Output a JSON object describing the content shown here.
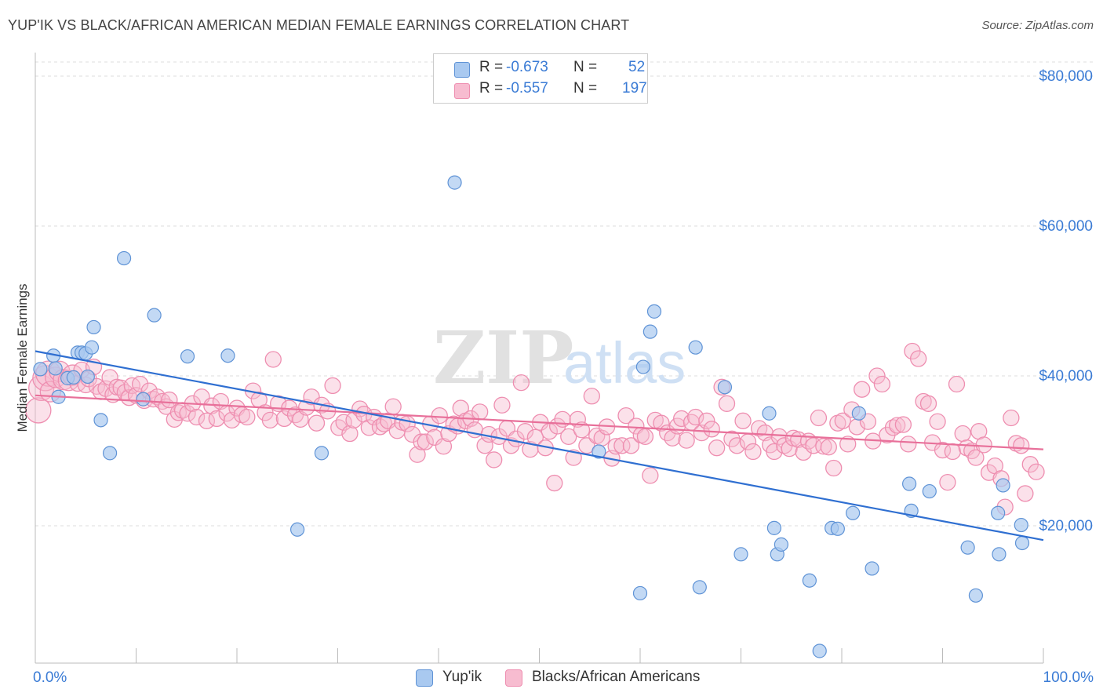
{
  "title": "YUP'IK VS BLACK/AFRICAN AMERICAN MEDIAN FEMALE EARNINGS CORRELATION CHART",
  "source": "Source: ZipAtlas.com",
  "watermark": {
    "zip": "ZIP",
    "atlas": "atlas"
  },
  "legend": {
    "rows": [
      {
        "r_label": "R =",
        "r_value": "-0.673",
        "n_label": "N =",
        "n_value": "52"
      },
      {
        "r_label": "R =",
        "r_value": "-0.557",
        "n_label": "N =",
        "n_value": "197"
      }
    ]
  },
  "bottom_legend": {
    "series1": "Yup'ik",
    "series2": "Blacks/African Americans"
  },
  "chart_data": {
    "type": "scatter",
    "title": "YUP'IK VS BLACK/AFRICAN AMERICAN MEDIAN FEMALE EARNINGS CORRELATION CHART",
    "xlabel": "",
    "ylabel": "Median Female Earnings",
    "xlim": [
      0,
      100
    ],
    "ylim": [
      0,
      80000
    ],
    "x_tick_labels": [
      "0.0%",
      "100.0%"
    ],
    "y_ticks": [
      20000,
      40000,
      60000,
      80000
    ],
    "y_tick_labels": [
      "$20,000",
      "$40,000",
      "$60,000",
      "$80,000"
    ],
    "grid": true,
    "legend_position": "top-center",
    "colors": {
      "yupik_fill": "#a9c9f0",
      "yupik_stroke": "#5f93d6",
      "yupik_line": "#2f6fd1",
      "black_fill": "#f7bcd0",
      "black_stroke": "#ee8eb0",
      "black_line": "#e8709a",
      "axis_text": "#3a7bd5"
    },
    "series": [
      {
        "name": "Yup'ik",
        "trend": {
          "x": [
            0,
            100
          ],
          "y": [
            43300,
            18100
          ]
        },
        "points": [
          [
            0.5,
            40900
          ],
          [
            1.8,
            42700
          ],
          [
            2.3,
            37200
          ],
          [
            3.2,
            39700
          ],
          [
            4.2,
            43100
          ],
          [
            4.6,
            43100
          ],
          [
            5.0,
            43000
          ],
          [
            5.2,
            39900
          ],
          [
            5.6,
            43800
          ],
          [
            5.8,
            46500
          ],
          [
            6.5,
            34100
          ],
          [
            7.4,
            29700
          ],
          [
            8.8,
            55700
          ],
          [
            10.7,
            36900
          ],
          [
            11.8,
            48100
          ],
          [
            15.1,
            42600
          ],
          [
            19.1,
            42700
          ],
          [
            26.0,
            19500
          ],
          [
            28.4,
            29700
          ],
          [
            41.6,
            65800
          ],
          [
            55.9,
            29900
          ],
          [
            60.0,
            11000
          ],
          [
            60.3,
            41200
          ],
          [
            61.0,
            45900
          ],
          [
            61.4,
            48600
          ],
          [
            65.5,
            43800
          ],
          [
            65.9,
            11800
          ],
          [
            68.4,
            38500
          ],
          [
            70.0,
            16200
          ],
          [
            72.8,
            35000
          ],
          [
            73.3,
            19700
          ],
          [
            73.6,
            16200
          ],
          [
            74.0,
            17500
          ],
          [
            76.8,
            12700
          ],
          [
            77.8,
            3300
          ],
          [
            79.0,
            19700
          ],
          [
            79.6,
            19600
          ],
          [
            81.1,
            21700
          ],
          [
            81.7,
            35000
          ],
          [
            83.0,
            14300
          ],
          [
            86.7,
            25600
          ],
          [
            86.9,
            22000
          ],
          [
            88.7,
            24600
          ],
          [
            92.5,
            17100
          ],
          [
            93.3,
            10700
          ],
          [
            95.5,
            21700
          ],
          [
            95.6,
            16200
          ],
          [
            96.0,
            25400
          ],
          [
            97.8,
            20100
          ],
          [
            97.9,
            17700
          ],
          [
            3.8,
            39800
          ],
          [
            2.0,
            41000
          ]
        ]
      },
      {
        "name": "Blacks/African Americans",
        "trend": {
          "x": [
            0,
            100
          ],
          "y": [
            37400,
            30200
          ]
        },
        "points": [
          [
            0.3,
            35400
          ],
          [
            0.6,
            38400
          ],
          [
            1.0,
            39700
          ],
          [
            1.3,
            40300
          ],
          [
            1.5,
            37900
          ],
          [
            2.0,
            39800
          ],
          [
            2.4,
            40600
          ],
          [
            2.8,
            39500
          ],
          [
            3.3,
            39400
          ],
          [
            3.7,
            40100
          ],
          [
            4.2,
            39000
          ],
          [
            4.6,
            40800
          ],
          [
            5.0,
            38800
          ],
          [
            5.3,
            39600
          ],
          [
            5.8,
            41200
          ],
          [
            6.1,
            38600
          ],
          [
            6.5,
            37900
          ],
          [
            7.0,
            38300
          ],
          [
            7.4,
            39800
          ],
          [
            7.7,
            37500
          ],
          [
            8.1,
            38500
          ],
          [
            8.5,
            38400
          ],
          [
            8.9,
            37800
          ],
          [
            9.3,
            37100
          ],
          [
            9.6,
            38700
          ],
          [
            10.0,
            37400
          ],
          [
            10.4,
            38900
          ],
          [
            10.8,
            36700
          ],
          [
            11.3,
            38000
          ],
          [
            11.7,
            36900
          ],
          [
            12.1,
            37200
          ],
          [
            12.6,
            36600
          ],
          [
            13.0,
            35900
          ],
          [
            13.3,
            36800
          ],
          [
            13.8,
            34200
          ],
          [
            14.2,
            35100
          ],
          [
            14.6,
            35400
          ],
          [
            15.1,
            35000
          ],
          [
            15.6,
            36300
          ],
          [
            16.0,
            34500
          ],
          [
            16.5,
            37200
          ],
          [
            17.0,
            34000
          ],
          [
            17.5,
            36000
          ],
          [
            18.0,
            34300
          ],
          [
            18.4,
            36600
          ],
          [
            19.0,
            35000
          ],
          [
            19.5,
            34100
          ],
          [
            20.0,
            35700
          ],
          [
            20.5,
            34800
          ],
          [
            21.0,
            34500
          ],
          [
            21.6,
            38000
          ],
          [
            22.2,
            36800
          ],
          [
            22.8,
            35100
          ],
          [
            23.3,
            34100
          ],
          [
            23.6,
            42200
          ],
          [
            24.1,
            36300
          ],
          [
            24.7,
            34300
          ],
          [
            25.2,
            35700
          ],
          [
            25.8,
            34800
          ],
          [
            26.3,
            34200
          ],
          [
            26.9,
            35800
          ],
          [
            27.4,
            37200
          ],
          [
            27.9,
            33700
          ],
          [
            28.4,
            36100
          ],
          [
            29.0,
            35300
          ],
          [
            29.5,
            38700
          ],
          [
            30.1,
            33100
          ],
          [
            30.6,
            33800
          ],
          [
            31.2,
            32300
          ],
          [
            31.6,
            34100
          ],
          [
            32.2,
            35600
          ],
          [
            32.6,
            34900
          ],
          [
            33.1,
            33100
          ],
          [
            33.6,
            34500
          ],
          [
            34.2,
            33200
          ],
          [
            34.6,
            33600
          ],
          [
            35.0,
            34000
          ],
          [
            35.5,
            35900
          ],
          [
            35.9,
            32700
          ],
          [
            36.4,
            33800
          ],
          [
            36.9,
            33600
          ],
          [
            37.4,
            32200
          ],
          [
            37.9,
            29500
          ],
          [
            38.3,
            31200
          ],
          [
            38.7,
            31200
          ],
          [
            39.2,
            33600
          ],
          [
            39.6,
            31800
          ],
          [
            40.1,
            34700
          ],
          [
            40.5,
            30600
          ],
          [
            41.0,
            32300
          ],
          [
            41.5,
            33600
          ],
          [
            41.9,
            33300
          ],
          [
            42.2,
            35700
          ],
          [
            42.7,
            34000
          ],
          [
            43.2,
            34300
          ],
          [
            43.6,
            32800
          ],
          [
            44.1,
            35200
          ],
          [
            44.6,
            30700
          ],
          [
            45.0,
            32200
          ],
          [
            45.5,
            28800
          ],
          [
            46.0,
            31900
          ],
          [
            46.3,
            36100
          ],
          [
            46.8,
            33000
          ],
          [
            47.2,
            30700
          ],
          [
            47.7,
            31600
          ],
          [
            48.2,
            39100
          ],
          [
            48.6,
            32600
          ],
          [
            49.1,
            30200
          ],
          [
            49.6,
            31800
          ],
          [
            50.1,
            33800
          ],
          [
            50.6,
            30400
          ],
          [
            51.0,
            32600
          ],
          [
            51.5,
            25700
          ],
          [
            51.8,
            33300
          ],
          [
            52.3,
            34200
          ],
          [
            52.9,
            31900
          ],
          [
            53.4,
            29100
          ],
          [
            53.8,
            34200
          ],
          [
            54.2,
            32800
          ],
          [
            54.7,
            30700
          ],
          [
            55.2,
            37300
          ],
          [
            55.7,
            32000
          ],
          [
            56.2,
            31700
          ],
          [
            56.7,
            33200
          ],
          [
            57.2,
            29000
          ],
          [
            57.6,
            30600
          ],
          [
            58.2,
            30700
          ],
          [
            58.6,
            34700
          ],
          [
            59.1,
            30700
          ],
          [
            59.6,
            33300
          ],
          [
            60.1,
            32100
          ],
          [
            60.5,
            31900
          ],
          [
            61.0,
            26700
          ],
          [
            61.5,
            34100
          ],
          [
            62.1,
            33700
          ],
          [
            62.7,
            32400
          ],
          [
            63.2,
            31700
          ],
          [
            63.7,
            33300
          ],
          [
            64.1,
            34300
          ],
          [
            64.6,
            31400
          ],
          [
            65.1,
            33800
          ],
          [
            65.5,
            34500
          ],
          [
            66.1,
            32400
          ],
          [
            66.6,
            34000
          ],
          [
            67.1,
            32900
          ],
          [
            67.6,
            30400
          ],
          [
            68.1,
            38500
          ],
          [
            68.6,
            36300
          ],
          [
            69.1,
            31600
          ],
          [
            69.6,
            30700
          ],
          [
            70.2,
            34000
          ],
          [
            70.7,
            31200
          ],
          [
            71.2,
            29900
          ],
          [
            71.8,
            33000
          ],
          [
            72.4,
            32400
          ],
          [
            72.9,
            30800
          ],
          [
            73.3,
            29900
          ],
          [
            73.8,
            31900
          ],
          [
            74.3,
            30700
          ],
          [
            74.8,
            30300
          ],
          [
            75.2,
            31700
          ],
          [
            75.7,
            31500
          ],
          [
            76.2,
            29800
          ],
          [
            76.7,
            31300
          ],
          [
            77.2,
            30700
          ],
          [
            77.7,
            34400
          ],
          [
            78.2,
            30600
          ],
          [
            78.7,
            30500
          ],
          [
            79.2,
            27700
          ],
          [
            79.6,
            33700
          ],
          [
            80.1,
            34000
          ],
          [
            80.6,
            30900
          ],
          [
            81.0,
            35500
          ],
          [
            81.5,
            33200
          ],
          [
            82.0,
            38200
          ],
          [
            82.6,
            33900
          ],
          [
            83.1,
            31300
          ],
          [
            83.5,
            40000
          ],
          [
            84.0,
            38900
          ],
          [
            84.5,
            32100
          ],
          [
            85.1,
            33100
          ],
          [
            85.5,
            33400
          ],
          [
            86.1,
            33500
          ],
          [
            86.6,
            30900
          ],
          [
            87.0,
            43300
          ],
          [
            87.6,
            42300
          ],
          [
            88.1,
            36600
          ],
          [
            88.6,
            36300
          ],
          [
            89.0,
            31100
          ],
          [
            89.5,
            33900
          ],
          [
            90.0,
            30100
          ],
          [
            90.5,
            25800
          ],
          [
            91.0,
            29900
          ],
          [
            91.4,
            38900
          ],
          [
            92.0,
            32300
          ],
          [
            92.4,
            30400
          ],
          [
            92.9,
            30000
          ],
          [
            93.3,
            29100
          ],
          [
            93.6,
            32600
          ],
          [
            94.1,
            30800
          ],
          [
            94.6,
            27100
          ],
          [
            95.2,
            28000
          ],
          [
            95.8,
            26300
          ],
          [
            96.2,
            22500
          ],
          [
            96.8,
            34400
          ],
          [
            97.3,
            31000
          ],
          [
            97.8,
            30700
          ],
          [
            98.2,
            24300
          ],
          [
            98.7,
            28200
          ],
          [
            99.3,
            27200
          ]
        ]
      }
    ]
  }
}
